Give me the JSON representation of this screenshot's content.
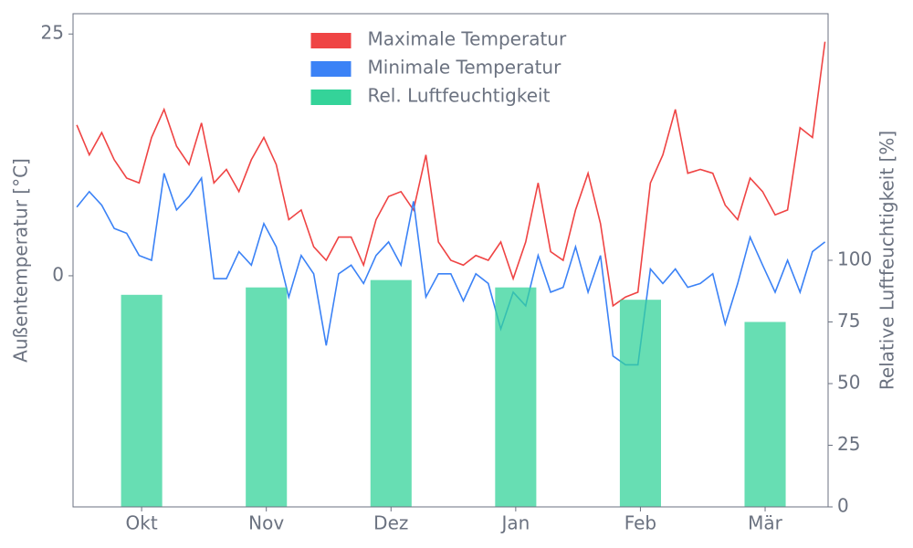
{
  "chart_data": {
    "type": "line",
    "xlim": [
      -0.55,
      5.505
    ],
    "xticks": [
      {
        "value": 0,
        "label": "Okt"
      },
      {
        "value": 1,
        "label": "Nov"
      },
      {
        "value": 2,
        "label": "Dez"
      },
      {
        "value": 3,
        "label": "Jan"
      },
      {
        "value": 4,
        "label": "Feb"
      },
      {
        "value": 5,
        "label": "Mär"
      }
    ],
    "ylim": [
      -23.9,
      27.1
    ],
    "yticks": [
      0,
      25
    ],
    "y2lim": [
      0,
      200
    ],
    "y2ticks": [
      0,
      25,
      50,
      75,
      100
    ],
    "ylabel": "Außentemperatur [°C]",
    "y2label": "Relative Luftfeuchtigkeit [%]",
    "legend": "upper center",
    "x": [
      -0.52,
      -0.42,
      -0.32,
      -0.22,
      -0.12,
      -0.02,
      0.08,
      0.18,
      0.28,
      0.38,
      0.48,
      0.58,
      0.68,
      0.78,
      0.88,
      0.98,
      1.08,
      1.18,
      1.28,
      1.38,
      1.48,
      1.58,
      1.68,
      1.78,
      1.88,
      1.98,
      2.08,
      2.18,
      2.28,
      2.38,
      2.48,
      2.58,
      2.68,
      2.78,
      2.88,
      2.98,
      3.08,
      3.18,
      3.28,
      3.38,
      3.48,
      3.58,
      3.68,
      3.78,
      3.88,
      3.98,
      4.08,
      4.18,
      4.28,
      4.38,
      4.48,
      4.58,
      4.68,
      4.78,
      4.88,
      4.98,
      5.08,
      5.18,
      5.28,
      5.38,
      5.48
    ],
    "series": [
      {
        "name": "Maximale Temperatur",
        "color": "#ef4444",
        "type": "line",
        "values": [
          15.6,
          12.5,
          14.8,
          12.0,
          10.1,
          9.6,
          14.3,
          17.2,
          13.4,
          11.5,
          15.8,
          9.6,
          11.0,
          8.7,
          12.0,
          14.3,
          11.5,
          5.8,
          6.8,
          3.0,
          1.6,
          4.0,
          4.0,
          1.1,
          5.8,
          8.2,
          8.7,
          6.8,
          12.5,
          3.5,
          1.6,
          1.1,
          2.1,
          1.6,
          3.5,
          -0.3,
          3.5,
          9.6,
          2.5,
          1.6,
          6.8,
          10.6,
          5.4,
          -3.1,
          -2.2,
          -1.7,
          9.6,
          12.5,
          17.2,
          10.6,
          11.0,
          10.6,
          7.3,
          5.8,
          10.1,
          8.7,
          6.3,
          6.8,
          15.3,
          14.3,
          24.2
        ]
      },
      {
        "name": "Minimale Temperatur",
        "color": "#3b82f6",
        "type": "line",
        "values": [
          7.1,
          8.7,
          7.3,
          4.9,
          4.4,
          2.1,
          1.6,
          10.6,
          6.8,
          8.2,
          10.1,
          -0.3,
          -0.3,
          2.5,
          1.1,
          5.4,
          3.0,
          -2.2,
          2.1,
          0.2,
          -7.2,
          0.2,
          1.1,
          -0.8,
          2.1,
          3.5,
          1.1,
          7.7,
          -2.2,
          0.2,
          0.2,
          -2.6,
          0.2,
          -0.8,
          -5.5,
          -1.7,
          -3.1,
          2.1,
          -1.7,
          -1.2,
          3.0,
          -1.7,
          2.1,
          -8.3,
          -9.2,
          -9.2,
          0.7,
          -0.8,
          0.7,
          -1.2,
          -0.8,
          0.2,
          -5.0,
          -0.8,
          4.0,
          1.1,
          -1.7,
          1.6,
          -1.7,
          2.5,
          3.5
        ]
      },
      {
        "name": "Rel. Luftfeuchtigkeit",
        "color": "#34d399",
        "type": "bar",
        "axis": "y2",
        "x": [
          0,
          1,
          2,
          3,
          4,
          5
        ],
        "values": [
          86,
          89,
          92,
          89,
          84,
          75
        ]
      }
    ]
  }
}
